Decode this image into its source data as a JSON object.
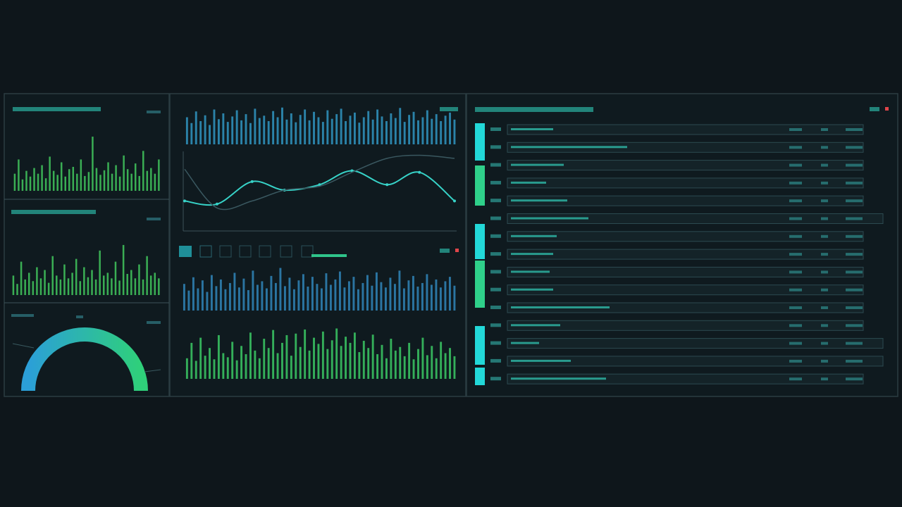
{
  "chart_data": [
    {
      "type": "bar",
      "color": "#3fbf5a",
      "ylim": [
        0,
        100
      ],
      "values": [
        30,
        55,
        20,
        35,
        25,
        40,
        30,
        45,
        22,
        60,
        35,
        28,
        50,
        25,
        38,
        42,
        30,
        55,
        26,
        33,
        95,
        40,
        28,
        36,
        50,
        30,
        45,
        25,
        62,
        38,
        30,
        48,
        26,
        70,
        35,
        40,
        30,
        55
      ]
    },
    {
      "type": "bar",
      "color": "#3fbf5a",
      "ylim": [
        0,
        100
      ],
      "values": [
        35,
        20,
        60,
        28,
        40,
        25,
        50,
        30,
        45,
        22,
        70,
        35,
        28,
        55,
        30,
        40,
        65,
        25,
        50,
        32,
        45,
        28,
        80,
        35,
        40,
        30,
        60,
        26,
        90,
        38,
        45,
        30,
        55,
        28,
        70,
        35,
        40,
        30
      ]
    },
    {
      "type": "bar",
      "color": "#2f8fb8",
      "ylim": [
        0,
        100
      ],
      "values": [
        70,
        55,
        85,
        60,
        75,
        50,
        90,
        65,
        80,
        58,
        72,
        88,
        62,
        78,
        55,
        92,
        68,
        74,
        60,
        86,
        70,
        95,
        64,
        80,
        57,
        76,
        90,
        62,
        84,
        70,
        58,
        88,
        66,
        78,
        92,
        60,
        74,
        82,
        56,
        70,
        86,
        64,
        90,
        72,
        60,
        80,
        68,
        94,
        58,
        76,
        84,
        62,
        70,
        88,
        66,
        78,
        60,
        74,
        82,
        64
      ]
    },
    {
      "type": "line",
      "ylim": [
        0,
        100
      ],
      "x": [
        0,
        12,
        25,
        37,
        50,
        62,
        75,
        87,
        100
      ],
      "series": [
        {
          "color": "#37d3c8",
          "values": [
            36,
            32,
            61,
            50,
            57,
            75,
            57,
            73,
            36
          ]
        },
        {
          "color": "#3a5860",
          "values": [
            77,
            27,
            36,
            50,
            55,
            73,
            91,
            95,
            91
          ]
        }
      ]
    },
    {
      "type": "bar",
      "color": "#2f7fb0",
      "ylim": [
        0,
        100
      ],
      "values": [
        60,
        45,
        75,
        50,
        68,
        42,
        80,
        55,
        70,
        48,
        62,
        85,
        52,
        72,
        46,
        90,
        58,
        66,
        50,
        78,
        62,
        96,
        55,
        74,
        48,
        68,
        82,
        54,
        76,
        60,
        50,
        84,
        58,
        70,
        88,
        52,
        66,
        76,
        48,
        62,
        80,
        56,
        86,
        64,
        52,
        74,
        60,
        90,
        50,
        68,
        78,
        54,
        62,
        82,
        58,
        70,
        52,
        66,
        76,
        56
      ]
    },
    {
      "type": "bar",
      "color": "#38c060",
      "ylim": [
        0,
        100
      ],
      "values": [
        40,
        70,
        35,
        80,
        45,
        60,
        38,
        85,
        50,
        42,
        72,
        36,
        64,
        48,
        90,
        55,
        40,
        78,
        60,
        95,
        50,
        70,
        85,
        45,
        88,
        62,
        96,
        55,
        80,
        68,
        92,
        58,
        75,
        98,
        64,
        82,
        70,
        90,
        52,
        74,
        60,
        86,
        48,
        66,
        40,
        78,
        55,
        62,
        44,
        70,
        38,
        58,
        80,
        46,
        64,
        40,
        72,
        50,
        60,
        44
      ]
    }
  ]
}
